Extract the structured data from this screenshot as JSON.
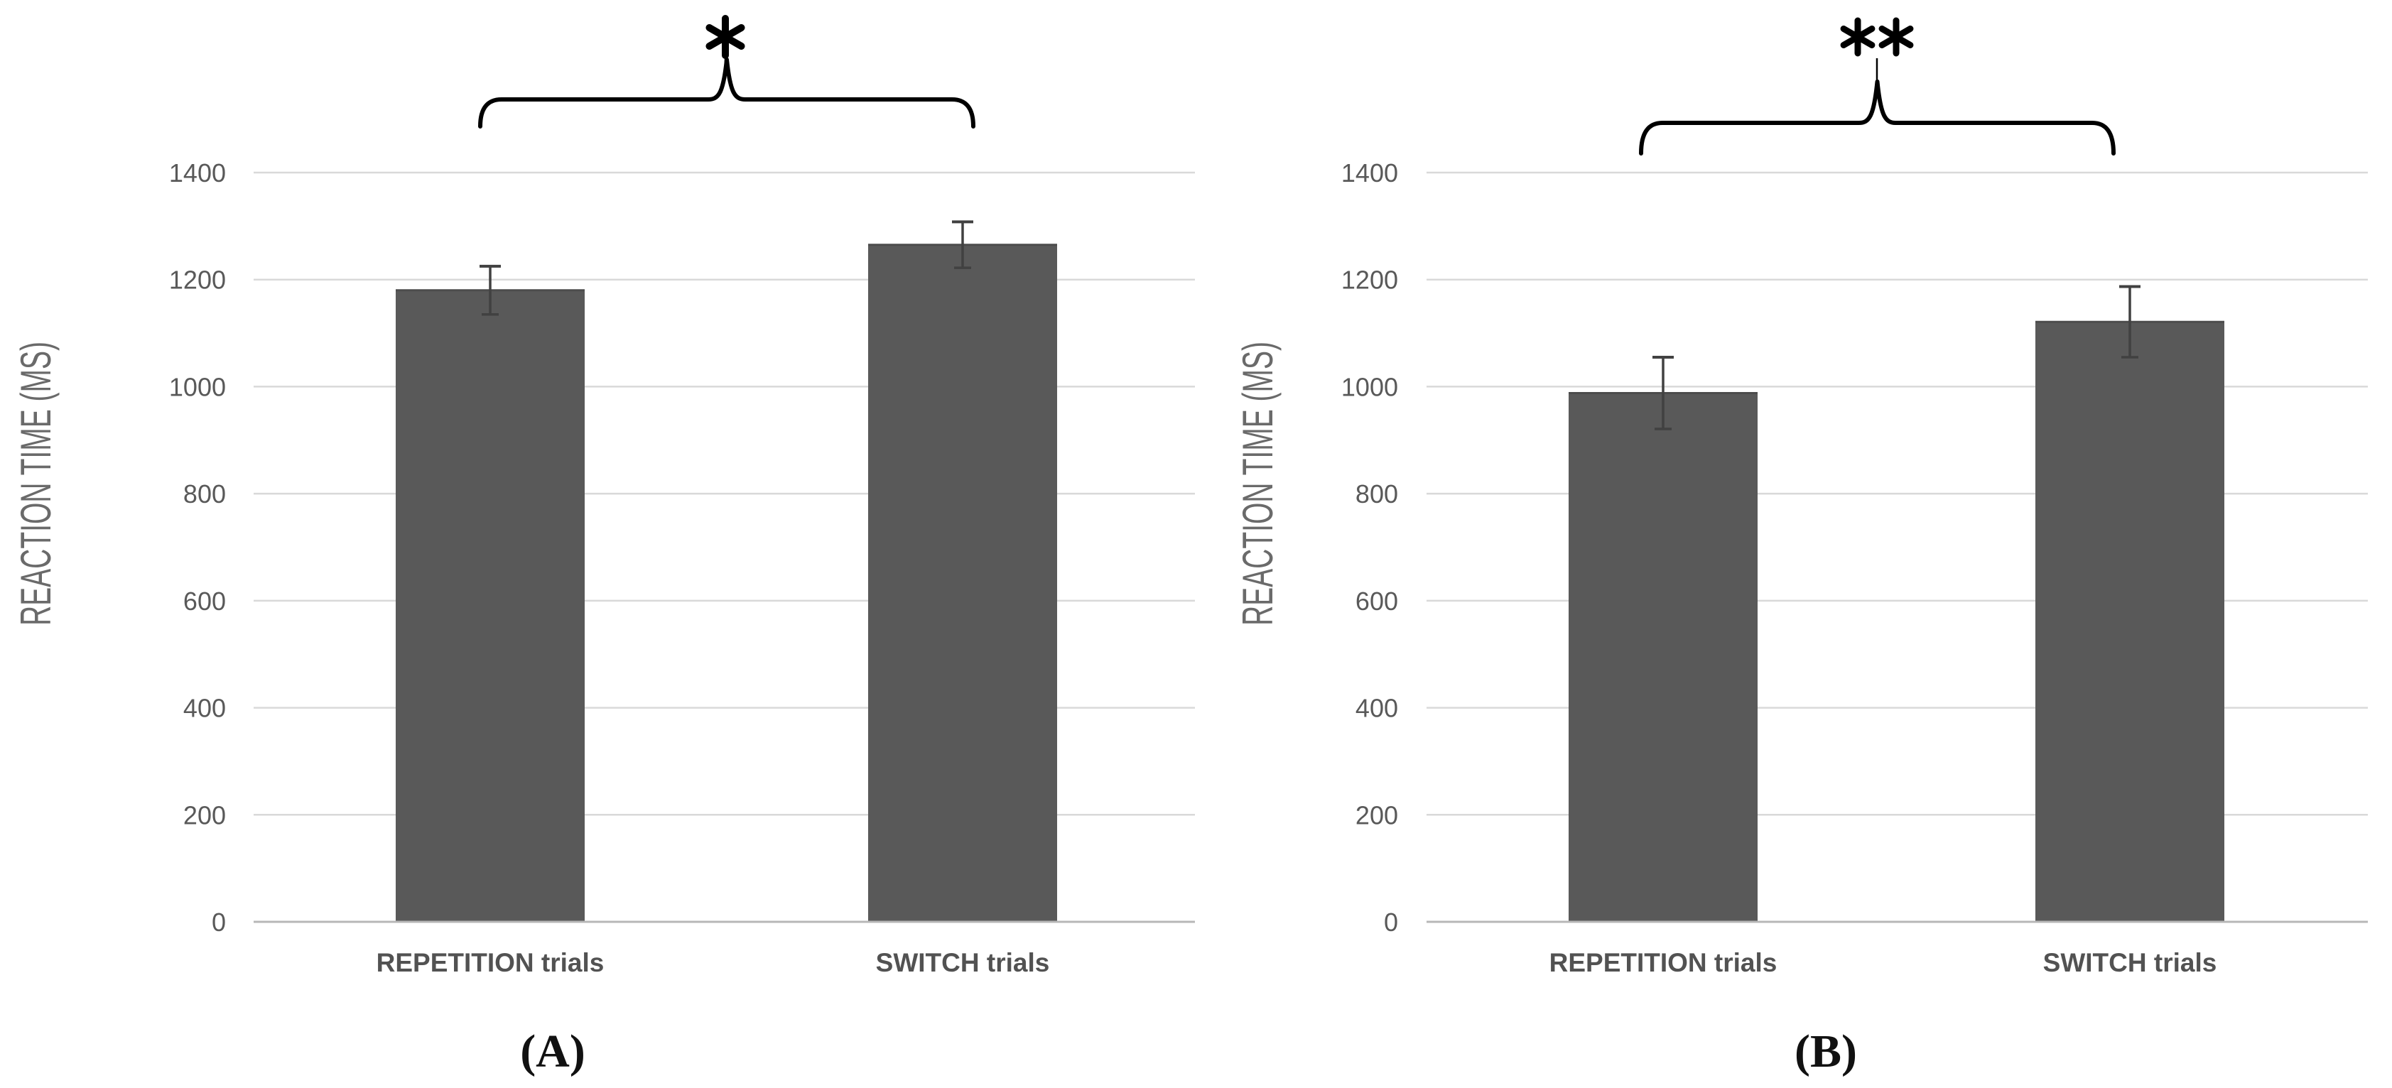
{
  "figure": {
    "y_axis_title": "REACTION TIME (MS)",
    "colors": {
      "bar_fill": "#595959",
      "bar_top_edge": "#4c4c4c",
      "gridline": "#d9d9d9",
      "baseline": "#b7b7b7",
      "error_bar": "#414141",
      "tick_text": "#595959",
      "category_text": "#525252",
      "axis_title_text": "#6a6a6a",
      "bracket": "#000000",
      "caption_text": "#111111",
      "background": "#ffffff"
    }
  },
  "chart_data": [
    {
      "type": "bar",
      "panel_label": "(A)",
      "title": "",
      "xlabel": "",
      "ylabel": "REACTION TIME (MS)",
      "categories": [
        "REPETITION trials",
        "SWITCH trials"
      ],
      "values": [
        1180,
        1265
      ],
      "error_bars": [
        45,
        43
      ],
      "significance": "*",
      "significance_between": [
        "REPETITION trials",
        "SWITCH trials"
      ],
      "yticks": [
        0,
        200,
        400,
        600,
        800,
        1000,
        1200,
        1400
      ],
      "ylim": [
        0,
        1400
      ],
      "grid": true,
      "legend": false
    },
    {
      "type": "bar",
      "panel_label": "(B)",
      "title": "",
      "xlabel": "",
      "ylabel": "REACTION TIME (MS)",
      "categories": [
        "REPETITION trials",
        "SWITCH trials"
      ],
      "values": [
        988,
        1121
      ],
      "error_bars": [
        67,
        66
      ],
      "significance": "**",
      "significance_between": [
        "REPETITION trials",
        "SWITCH trials"
      ],
      "yticks": [
        0,
        200,
        400,
        600,
        800,
        1000,
        1200,
        1400
      ],
      "ylim": [
        0,
        1400
      ],
      "grid": true,
      "legend": false
    }
  ]
}
